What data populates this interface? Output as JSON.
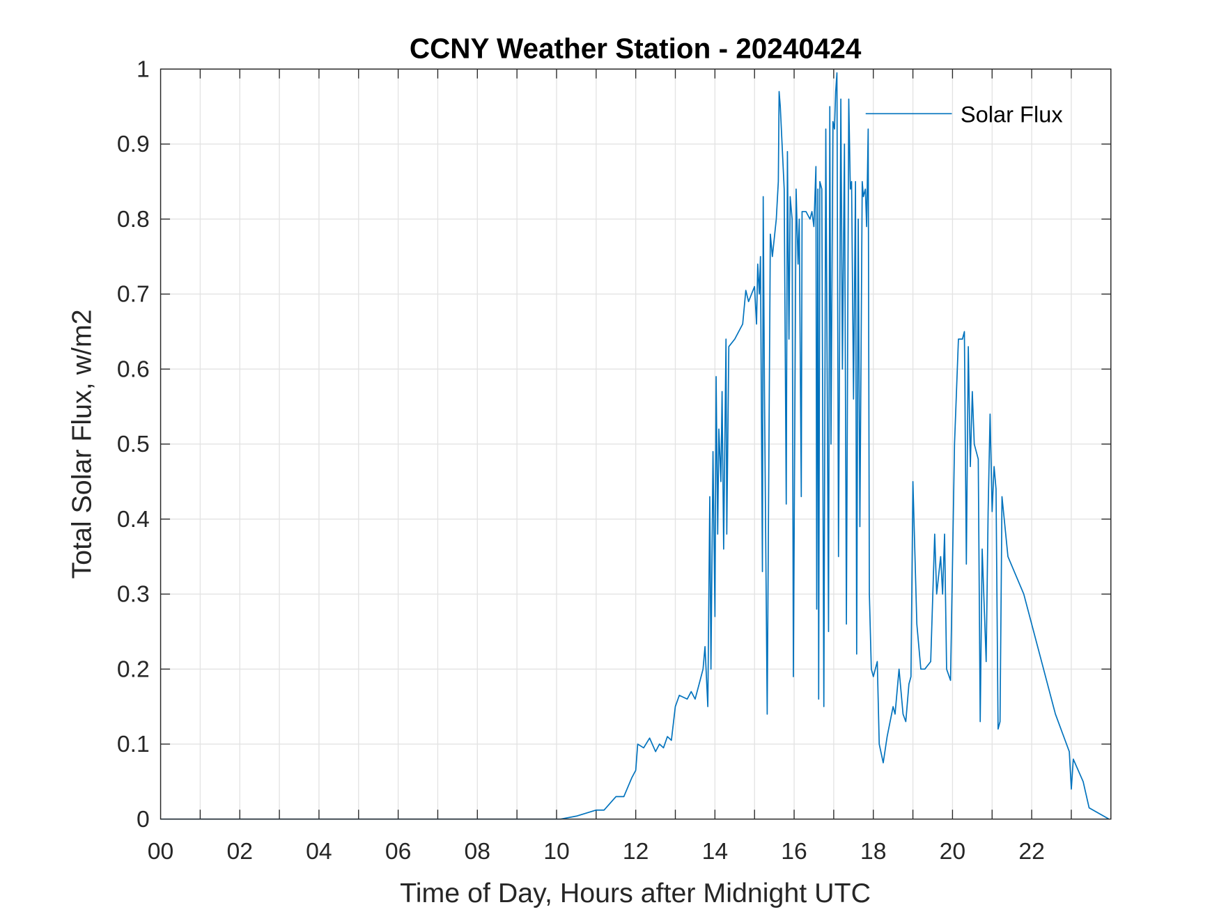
{
  "chart_data": {
    "type": "line",
    "title": "CCNY Weather Station - 20240424",
    "xlabel": "Time of Day, Hours after Midnight UTC",
    "ylabel": "Total Solar Flux, w/m2",
    "xlim": [
      0,
      24
    ],
    "ylim": [
      0,
      1
    ],
    "xticks": [
      0,
      2,
      4,
      6,
      8,
      10,
      12,
      14,
      16,
      18,
      20,
      22
    ],
    "xtick_labels": [
      "00",
      "02",
      "04",
      "06",
      "08",
      "10",
      "12",
      "14",
      "16",
      "18",
      "20",
      "22"
    ],
    "yticks": [
      0,
      0.1,
      0.2,
      0.3,
      0.4,
      0.5,
      0.6,
      0.7,
      0.8,
      0.9,
      1
    ],
    "ytick_labels": [
      "0",
      "0.1",
      "0.2",
      "0.3",
      "0.4",
      "0.5",
      "0.6",
      "0.7",
      "0.8",
      "0.9",
      "1"
    ],
    "grid": true,
    "legend_position": "top-right",
    "series": [
      {
        "name": "Solar Flux",
        "color": "#0072BD",
        "x": [
          0,
          10.1,
          10.5,
          11.0,
          11.2,
          11.5,
          11.7,
          11.9,
          12.0,
          12.05,
          12.2,
          12.35,
          12.5,
          12.6,
          12.7,
          12.8,
          12.9,
          13.0,
          13.1,
          13.3,
          13.4,
          13.5,
          13.6,
          13.7,
          13.75,
          13.82,
          13.87,
          13.9,
          13.95,
          14.0,
          14.03,
          14.07,
          14.1,
          14.15,
          14.18,
          14.22,
          14.28,
          14.3,
          14.35,
          14.5,
          14.7,
          14.78,
          14.85,
          15.0,
          15.05,
          15.08,
          15.12,
          15.15,
          15.2,
          15.22,
          15.25,
          15.32,
          15.4,
          15.45,
          15.55,
          15.6,
          15.62,
          15.65,
          15.75,
          15.8,
          15.83,
          15.87,
          15.9,
          15.95,
          15.98,
          16.05,
          16.1,
          16.13,
          16.18,
          16.2,
          16.3,
          16.4,
          16.45,
          16.5,
          16.52,
          16.55,
          16.57,
          16.6,
          16.62,
          16.65,
          16.7,
          16.75,
          16.8,
          16.83,
          16.87,
          16.9,
          16.93,
          16.98,
          17.02,
          17.05,
          17.08,
          17.12,
          17.18,
          17.22,
          17.27,
          17.32,
          17.38,
          17.42,
          17.45,
          17.5,
          17.55,
          17.58,
          17.62,
          17.66,
          17.72,
          17.75,
          17.8,
          17.83,
          17.87,
          17.9,
          17.95,
          18.0,
          18.1,
          18.15,
          18.25,
          18.35,
          18.5,
          18.55,
          18.65,
          18.75,
          18.82,
          18.9,
          18.95,
          19.0,
          19.1,
          19.2,
          19.3,
          19.45,
          19.55,
          19.6,
          19.7,
          19.75,
          19.8,
          19.85,
          19.95,
          20.05,
          20.15,
          20.25,
          20.3,
          20.35,
          20.4,
          20.45,
          20.5,
          20.55,
          20.65,
          20.7,
          20.75,
          20.85,
          20.9,
          20.95,
          21.0,
          21.05,
          21.1,
          21.15,
          21.2,
          21.25,
          21.4,
          21.8,
          22.2,
          22.6,
          22.95,
          23.0,
          23.05,
          23.3,
          23.45,
          23.95
        ],
        "y": [
          0,
          0,
          0.004,
          0.012,
          0.012,
          0.03,
          0.03,
          0.055,
          0.065,
          0.1,
          0.095,
          0.108,
          0.09,
          0.1,
          0.095,
          0.11,
          0.105,
          0.15,
          0.165,
          0.16,
          0.17,
          0.16,
          0.18,
          0.2,
          0.23,
          0.15,
          0.43,
          0.2,
          0.49,
          0.27,
          0.59,
          0.38,
          0.52,
          0.45,
          0.57,
          0.36,
          0.64,
          0.38,
          0.63,
          0.64,
          0.66,
          0.705,
          0.69,
          0.71,
          0.66,
          0.74,
          0.7,
          0.75,
          0.33,
          0.83,
          0.57,
          0.14,
          0.78,
          0.75,
          0.8,
          0.85,
          0.97,
          0.95,
          0.84,
          0.42,
          0.89,
          0.64,
          0.83,
          0.8,
          0.19,
          0.84,
          0.74,
          0.8,
          0.43,
          0.81,
          0.81,
          0.8,
          0.81,
          0.79,
          0.82,
          0.87,
          0.28,
          0.84,
          0.16,
          0.85,
          0.84,
          0.15,
          0.92,
          0.64,
          0.25,
          0.95,
          0.5,
          0.93,
          0.92,
          0.97,
          0.995,
          0.35,
          0.96,
          0.6,
          0.9,
          0.26,
          0.96,
          0.84,
          0.85,
          0.56,
          0.85,
          0.22,
          0.8,
          0.39,
          0.85,
          0.83,
          0.84,
          0.79,
          0.92,
          0.3,
          0.2,
          0.19,
          0.21,
          0.1,
          0.075,
          0.11,
          0.15,
          0.14,
          0.2,
          0.14,
          0.13,
          0.18,
          0.19,
          0.45,
          0.26,
          0.2,
          0.2,
          0.21,
          0.38,
          0.3,
          0.35,
          0.3,
          0.38,
          0.2,
          0.185,
          0.5,
          0.64,
          0.64,
          0.65,
          0.34,
          0.63,
          0.47,
          0.57,
          0.5,
          0.48,
          0.13,
          0.36,
          0.21,
          0.41,
          0.54,
          0.41,
          0.47,
          0.44,
          0.12,
          0.13,
          0.43,
          0.35,
          0.3,
          0.22,
          0.14,
          0.09,
          0.04,
          0.08,
          0.05,
          0.015,
          0
        ]
      }
    ]
  }
}
